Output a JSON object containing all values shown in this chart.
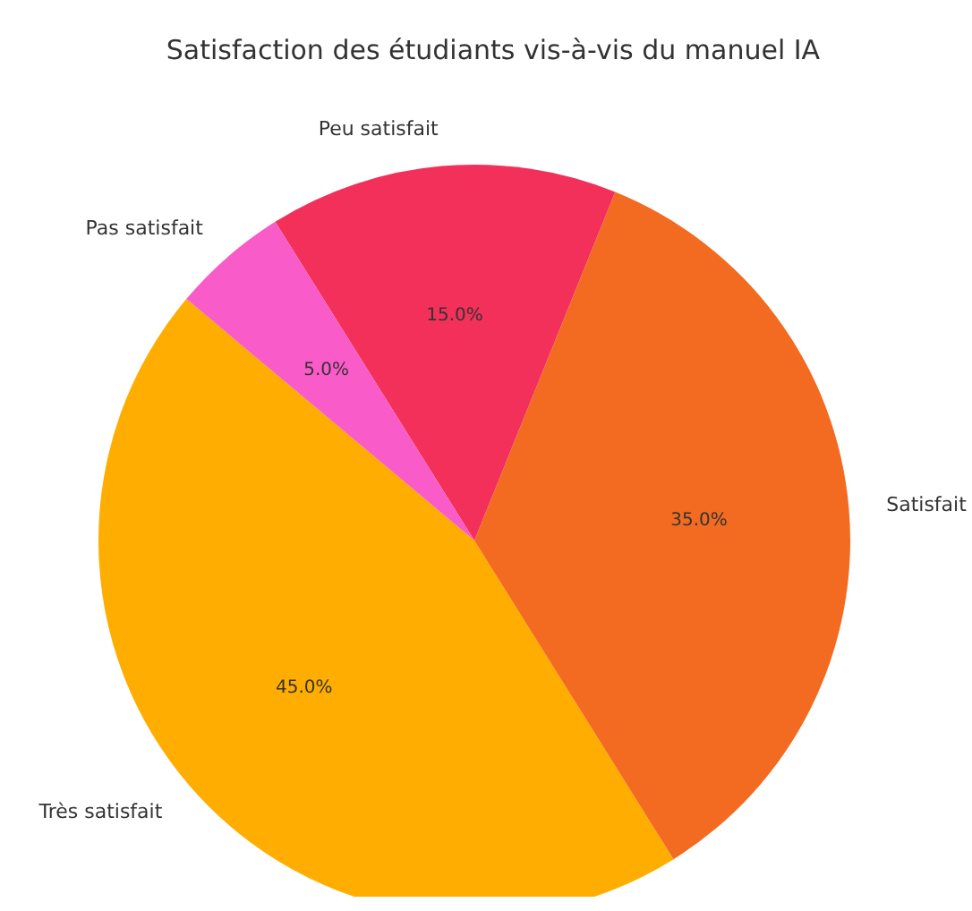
{
  "chart_data": {
    "type": "pie",
    "title": "Satisfaction des étudiants vis-à-vis du manuel IA",
    "categories": [
      "Très satisfait",
      "Satisfait",
      "Peu satisfait",
      "Pas satisfait"
    ],
    "values": [
      45,
      35,
      15,
      5
    ],
    "colors": [
      "#ffad00",
      "#f26b21",
      "#f3305a",
      "#f95bc8"
    ],
    "value_labels": [
      "45.0%",
      "35.0%",
      "15.0%",
      "5.0%"
    ],
    "legend": false
  }
}
